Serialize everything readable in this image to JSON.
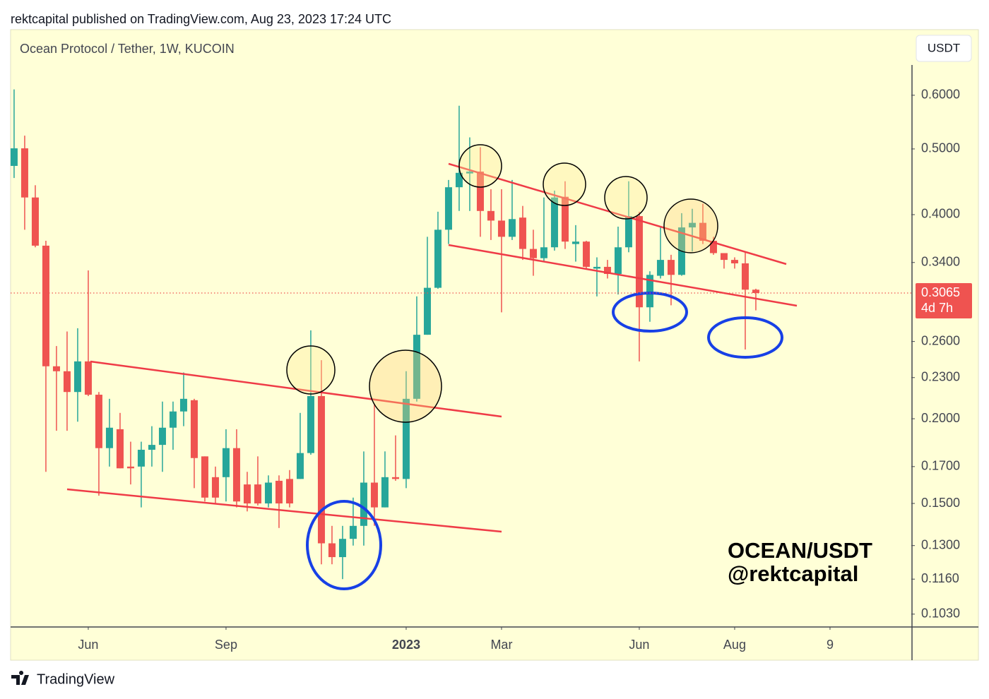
{
  "chart_data": {
    "type": "candlestick",
    "header": "rektcapital published on TradingView.com, Aug 23, 2023 17:24 UTC",
    "title": "Ocean Protocol / Tether, 1W, KUCOIN",
    "currency": "USDT",
    "last_price": 0.3065,
    "countdown": "4d 7h",
    "watermark": [
      "OCEAN/USDT",
      "@rektcapital"
    ],
    "brand": "TradingView",
    "log_scale": true,
    "up_color": "#26a69a",
    "down_color": "#ef5350",
    "open": [
      0.472,
      0.501,
      0.424,
      0.36,
      0.239,
      0.235,
      0.219,
      0.243,
      0.217,
      0.181,
      0.193,
      0.17,
      0.17,
      0.18,
      0.183,
      0.194,
      0.205,
      0.213,
      0.176,
      0.164,
      0.164,
      0.181,
      0.16,
      0.16,
      0.15,
      0.162,
      0.163,
      0.163,
      0.178,
      0.216,
      0.131,
      0.125,
      0.133,
      0.139,
      0.161,
      0.148,
      0.164,
      0.163,
      0.214,
      0.266,
      0.312,
      0.38,
      0.439,
      0.46,
      0.463,
      0.405,
      0.392,
      0.371,
      0.396,
      0.356,
      0.345,
      0.358,
      0.425,
      0.362,
      0.365,
      0.333,
      0.335,
      0.327,
      0.358,
      0.398,
      0.292,
      0.325,
      0.343,
      0.326,
      0.383,
      0.389,
      0.366,
      0.351,
      0.343,
      0.339,
      0.31
    ],
    "high": [
      0.612,
      0.523,
      0.442,
      0.366,
      0.256,
      0.269,
      0.272,
      0.331,
      0.219,
      0.214,
      0.204,
      0.185,
      0.185,
      0.195,
      0.212,
      0.212,
      0.234,
      0.214,
      0.176,
      0.17,
      0.193,
      0.193,
      0.167,
      0.176,
      0.165,
      0.165,
      0.168,
      0.204,
      0.27,
      0.244,
      0.139,
      0.139,
      0.153,
      0.179,
      0.21,
      0.179,
      0.189,
      0.235,
      0.303,
      0.371,
      0.404,
      0.45,
      0.579,
      0.52,
      0.503,
      0.436,
      0.436,
      0.45,
      0.412,
      0.38,
      0.424,
      0.434,
      0.448,
      0.386,
      0.366,
      0.346,
      0.343,
      0.384,
      0.448,
      0.404,
      0.33,
      0.383,
      0.349,
      0.402,
      0.408,
      0.415,
      0.371,
      0.351,
      0.346,
      0.353,
      0.311
    ],
    "low": [
      0.453,
      0.38,
      0.358,
      0.167,
      0.192,
      0.192,
      0.198,
      0.216,
      0.154,
      0.17,
      0.169,
      0.16,
      0.148,
      0.17,
      0.167,
      0.18,
      0.195,
      0.158,
      0.151,
      0.15,
      0.151,
      0.148,
      0.146,
      0.149,
      0.148,
      0.138,
      0.148,
      0.163,
      0.177,
      0.122,
      0.122,
      0.116,
      0.13,
      0.13,
      0.139,
      0.148,
      0.162,
      0.158,
      0.212,
      0.266,
      0.311,
      0.362,
      0.405,
      0.405,
      0.371,
      0.367,
      0.287,
      0.367,
      0.343,
      0.325,
      0.341,
      0.354,
      0.356,
      0.341,
      0.333,
      0.303,
      0.322,
      0.305,
      0.352,
      0.243,
      0.278,
      0.322,
      0.294,
      0.325,
      0.353,
      0.362,
      0.349,
      0.333,
      0.333,
      0.253,
      0.289
    ],
    "close": [
      0.501,
      0.424,
      0.36,
      0.239,
      0.235,
      0.219,
      0.243,
      0.217,
      0.181,
      0.194,
      0.169,
      0.169,
      0.18,
      0.183,
      0.194,
      0.205,
      0.214,
      0.175,
      0.153,
      0.153,
      0.181,
      0.151,
      0.15,
      0.15,
      0.161,
      0.15,
      0.15,
      0.178,
      0.216,
      0.131,
      0.125,
      0.133,
      0.139,
      0.161,
      0.148,
      0.164,
      0.163,
      0.214,
      0.266,
      0.312,
      0.38,
      0.439,
      0.461,
      0.463,
      0.405,
      0.392,
      0.371,
      0.394,
      0.356,
      0.345,
      0.358,
      0.424,
      0.365,
      0.365,
      0.335,
      0.335,
      0.327,
      0.358,
      0.398,
      0.292,
      0.326,
      0.343,
      0.326,
      0.383,
      0.389,
      0.366,
      0.351,
      0.343,
      0.339,
      0.31,
      0.3065
    ],
    "xlim": [
      -0.33,
      84.67
    ],
    "xticks": [
      {
        "value": 7,
        "label": "Jun"
      },
      {
        "value": 20,
        "label": "Sep"
      },
      {
        "value": 37,
        "label": "2023",
        "bold": true
      },
      {
        "value": 46,
        "label": "Mar"
      },
      {
        "value": 59,
        "label": "Jun"
      },
      {
        "value": 68,
        "label": "Aug"
      },
      {
        "value": 77,
        "label": "9"
      }
    ],
    "ylim": [
      0.0986,
      0.665
    ],
    "yticks": [
      {
        "value": 0.6,
        "label": "0.6000"
      },
      {
        "value": 0.5,
        "label": "0.5000"
      },
      {
        "value": 0.4,
        "label": "0.4000"
      },
      {
        "value": 0.34,
        "label": "0.3400"
      },
      {
        "value": 0.26,
        "label": "0.2600"
      },
      {
        "value": 0.23,
        "label": "0.2300"
      },
      {
        "value": 0.2,
        "label": "0.2000"
      },
      {
        "value": 0.17,
        "label": "0.1700"
      },
      {
        "value": 0.15,
        "label": "0.1500"
      },
      {
        "value": 0.13,
        "label": "0.1300"
      },
      {
        "value": 0.116,
        "label": "0.1160"
      },
      {
        "value": 0.103,
        "label": "0.1030"
      }
    ]
  }
}
